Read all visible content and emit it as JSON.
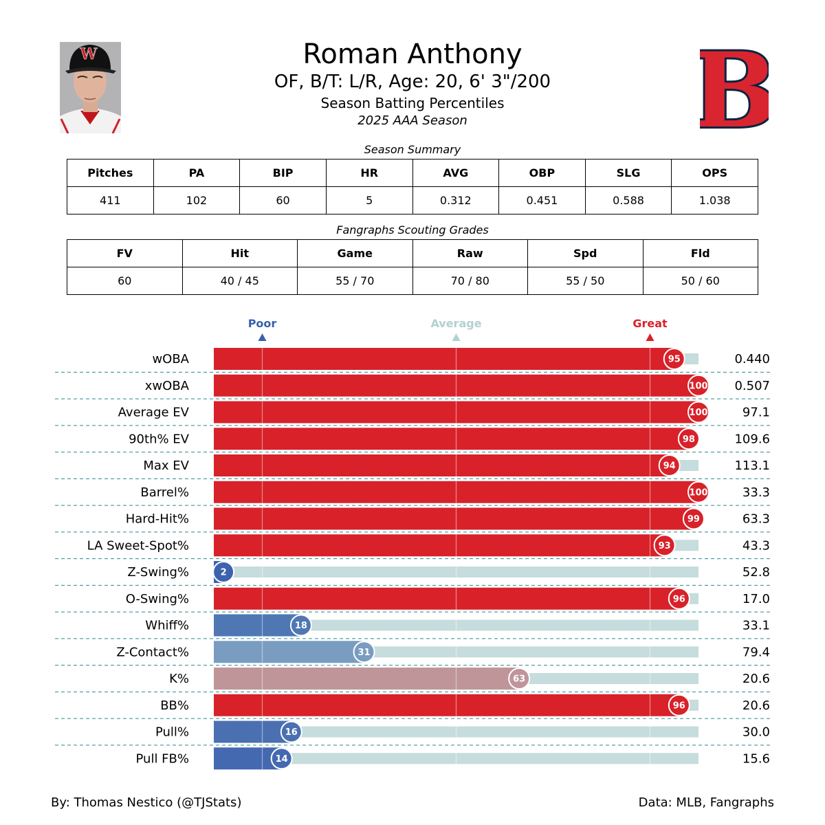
{
  "header": {
    "title": "Roman Anthony",
    "subtitle": "OF, B/T: L/R, Age: 20, 6' 3\"/200",
    "subtitle2": "Season Batting Percentiles",
    "season": "2025 AAA Season",
    "photo_cap_letter": "W",
    "logo_letter": "B"
  },
  "summary": {
    "caption": "Season Summary",
    "headers": [
      "Pitches",
      "PA",
      "BIP",
      "HR",
      "AVG",
      "OBP",
      "SLG",
      "OPS"
    ],
    "values": [
      "411",
      "102",
      "60",
      "5",
      "0.312",
      "0.451",
      "0.588",
      "1.038"
    ]
  },
  "grades": {
    "caption": "Fangraphs Scouting Grades",
    "headers": [
      "FV",
      "Hit",
      "Game",
      "Raw",
      "Spd",
      "Fld"
    ],
    "values": [
      "60",
      "40 / 45",
      "55 / 70",
      "70 / 80",
      "55 / 50",
      "50 / 60"
    ]
  },
  "chart_data": {
    "type": "bar",
    "orientation": "horizontal",
    "xlim": [
      0,
      100
    ],
    "reference_lines": [
      {
        "label": "Poor",
        "value": 10,
        "color": "#3661ad"
      },
      {
        "label": "Average",
        "value": 50,
        "color": "#b4cfd1"
      },
      {
        "label": "Great",
        "value": 90,
        "color": "#d82129"
      }
    ],
    "categories": [
      "wOBA",
      "xwOBA",
      "Average EV",
      "90th% EV",
      "Max EV",
      "Barrel%",
      "Hard-Hit%",
      "LA Sweet-Spot%",
      "Z-Swing%",
      "O-Swing%",
      "Whiff%",
      "Z-Contact%",
      "K%",
      "BB%",
      "Pull%",
      "Pull FB%"
    ],
    "percentiles": [
      95,
      100,
      100,
      98,
      94,
      100,
      99,
      93,
      2,
      96,
      18,
      31,
      63,
      96,
      16,
      14
    ],
    "stat_values": [
      "0.440",
      "0.507",
      "97.1",
      "109.6",
      "113.1",
      "33.3",
      "63.3",
      "43.3",
      "52.8",
      "17.0",
      "33.1",
      "79.4",
      "20.6",
      "20.6",
      "30.0",
      "15.6"
    ],
    "colors": [
      "#d82129",
      "#d82129",
      "#d82129",
      "#d82129",
      "#d82129",
      "#d82129",
      "#d82129",
      "#d82129",
      "#3d62ae",
      "#d82129",
      "#4e77b4",
      "#799cc0",
      "#bf9599",
      "#d82129",
      "#4a70b2",
      "#4469b1"
    ],
    "track_color": "#c6dcdd",
    "separator_color": "#2a8a8f"
  },
  "footer": {
    "left": "By: Thomas Nestico (@TJStats)",
    "right": "Data: MLB, Fangraphs"
  }
}
